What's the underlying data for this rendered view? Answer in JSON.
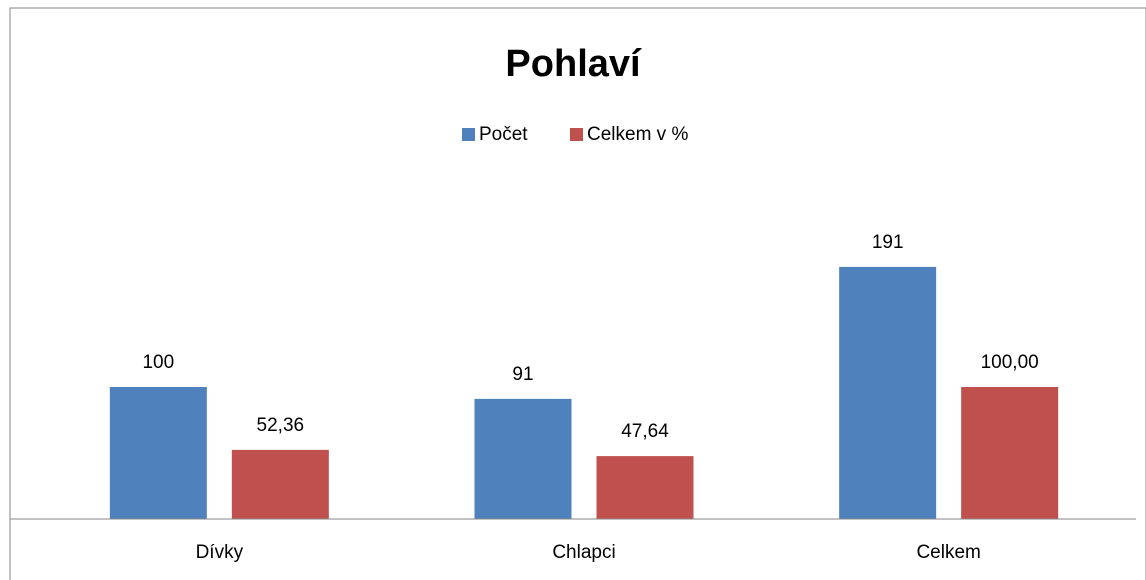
{
  "chart_data": {
    "type": "bar",
    "title": "Pohlaví",
    "categories": [
      "Dívky",
      "Chlapci",
      "Celkem"
    ],
    "series": [
      {
        "name": "Počet",
        "color": "#4f81bd",
        "values": [
          100,
          91,
          191
        ]
      },
      {
        "name": "Celkem v %",
        "color": "#c0504d",
        "values": [
          52.36,
          47.64,
          100.0
        ],
        "value_labels": [
          "52,36",
          "47,64",
          "100,00"
        ]
      }
    ],
    "ylim": [
      0,
      250
    ],
    "legend": "top"
  }
}
